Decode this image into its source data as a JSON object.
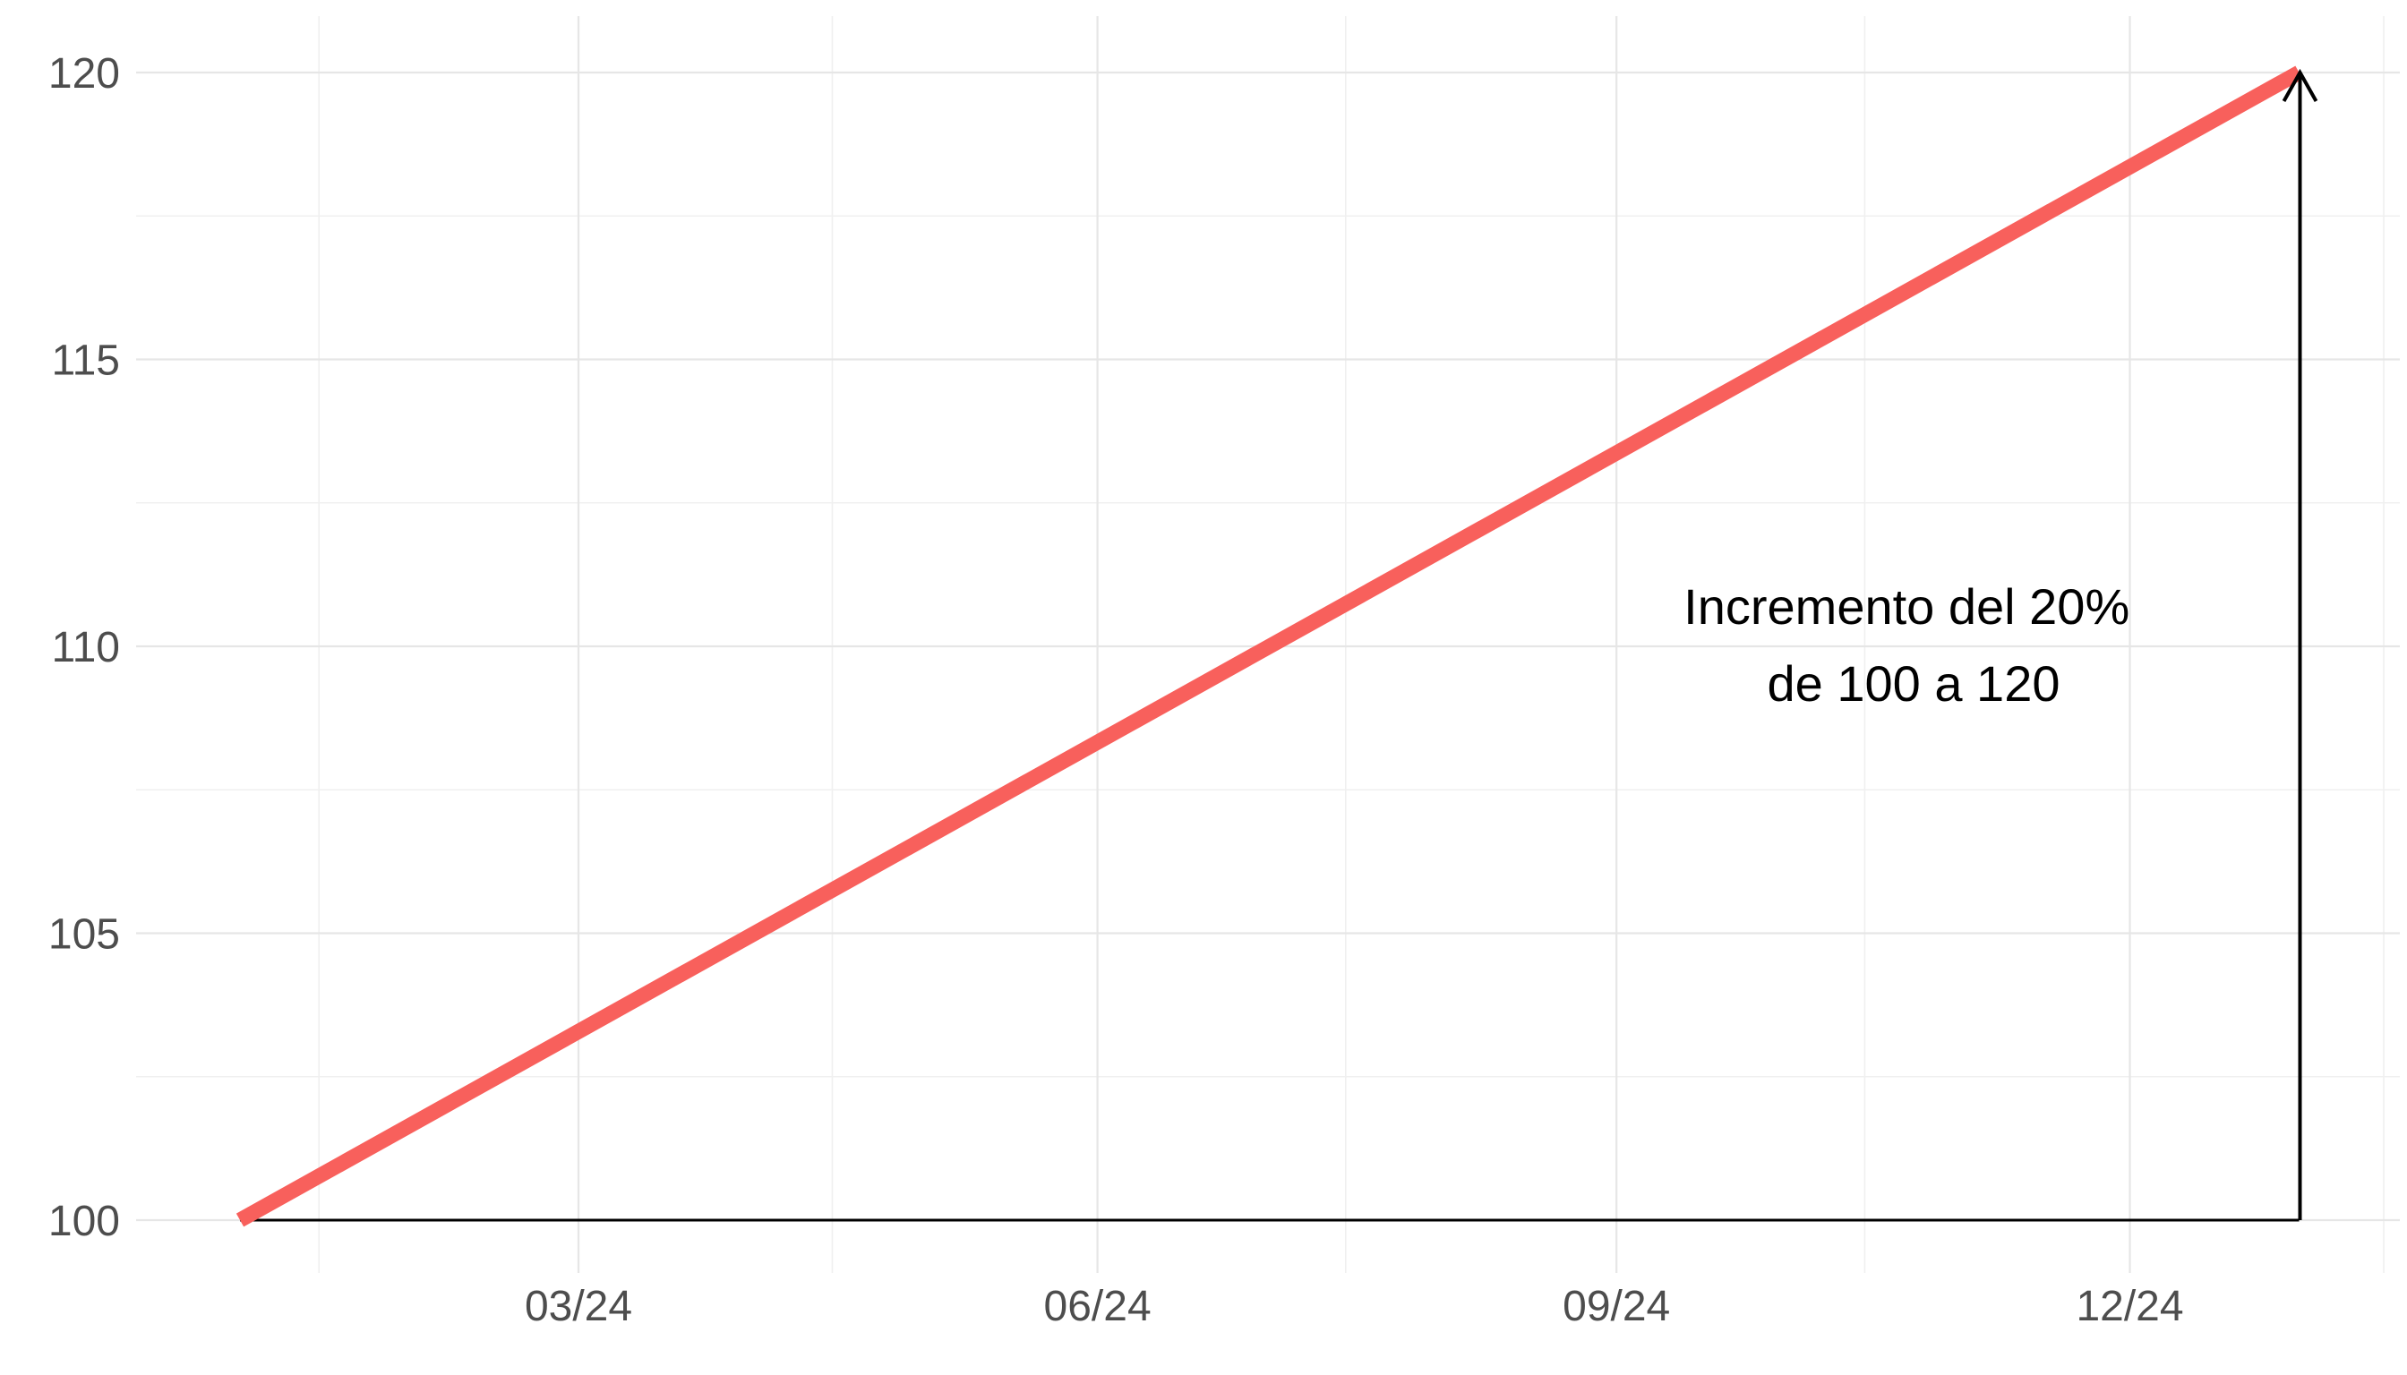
{
  "chart_data": {
    "type": "line",
    "title": "",
    "xlabel": "",
    "ylabel": "",
    "x": [
      "2024-01-01",
      "2024-12-31"
    ],
    "y": [
      100,
      120
    ],
    "series": [
      {
        "values": [
          100,
          120
        ],
        "color": "#F8605C"
      }
    ],
    "x_ticks": [
      "03/24",
      "06/24",
      "09/24",
      "12/24"
    ],
    "y_ticks": [
      100,
      105,
      110,
      115,
      120
    ],
    "ylim": [
      99,
      121
    ],
    "grid": true,
    "legend": "none",
    "annotation": {
      "lines": [
        "Incremento del 20%",
        "de 100 a 120"
      ],
      "arrow_from": 100,
      "arrow_to": 120,
      "color": "#000000"
    }
  }
}
